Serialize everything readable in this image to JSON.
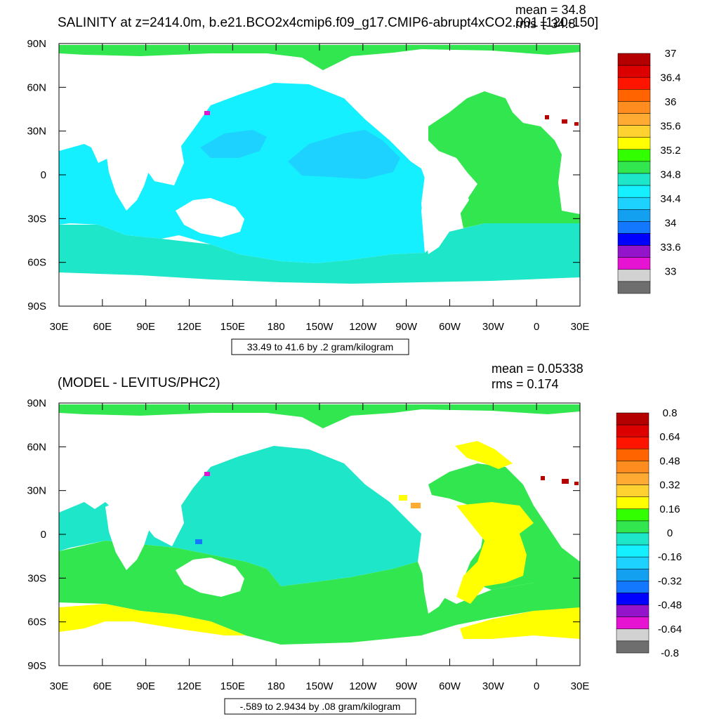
{
  "top_panel": {
    "title": "SALINITY at z=2414.0m, b.e21.BCO2x4cmip6.f09_g17.CMIP6-abrupt4xCO2.001 [120-150]",
    "stat_mean": "mean = 34.8",
    "stat_rms": "rms = 34.8",
    "range_label": "33.49 to 41.6 by .2 gram/kilogram",
    "colorbar": {
      "colors": [
        "#6e6e6e",
        "#d2d2d2",
        "#e614d2",
        "#9414cc",
        "#0000ff",
        "#1478ff",
        "#14a0f0",
        "#1ed2ff",
        "#14f0ff",
        "#1ee6c8",
        "#32e650",
        "#32ff00",
        "#ffff00",
        "#ffd232",
        "#ffaa32",
        "#ff8c1e",
        "#ff6400",
        "#ff1400",
        "#dc0000",
        "#b40000"
      ],
      "labels": [
        "37",
        "36.4",
        "36",
        "35.6",
        "35.2",
        "34.8",
        "34.4",
        "34",
        "33.6",
        "33"
      ]
    }
  },
  "bottom_panel": {
    "title": "(MODEL - LEVITUS/PHC2)",
    "stat_mean": "mean = 0.05338",
    "stat_rms": "rms = 0.174",
    "range_label": "-.589 to 2.9434 by .08 gram/kilogram",
    "colorbar": {
      "colors": [
        "#6e6e6e",
        "#d2d2d2",
        "#e614d2",
        "#9414cc",
        "#0000ff",
        "#1478ff",
        "#14a0f0",
        "#1ed2ff",
        "#14f0ff",
        "#1ee6c8",
        "#32e650",
        "#32ff00",
        "#ffff00",
        "#ffd232",
        "#ffaa32",
        "#ff8c1e",
        "#ff6400",
        "#ff1400",
        "#dc0000",
        "#b40000"
      ],
      "labels": [
        "0.8",
        "0.64",
        "0.48",
        "0.32",
        "0.16",
        "0",
        "-0.16",
        "-0.32",
        "-0.48",
        "-0.64",
        "-0.8"
      ]
    }
  },
  "axes": {
    "lon_ticks": [
      "30E",
      "60E",
      "90E",
      "120E",
      "150E",
      "180",
      "150W",
      "120W",
      "90W",
      "60W",
      "30W",
      "0",
      "30E"
    ],
    "lat_ticks": [
      "90N",
      "60N",
      "30N",
      "0",
      "30S",
      "60S",
      "90S"
    ]
  },
  "colors": {
    "cyan_light": "#14f0ff",
    "teal": "#1ee6c8",
    "light_blue": "#1ed2ff",
    "green": "#32e650",
    "lime": "#32ff00",
    "yellow": "#ffff00",
    "land": "#ffffff"
  }
}
